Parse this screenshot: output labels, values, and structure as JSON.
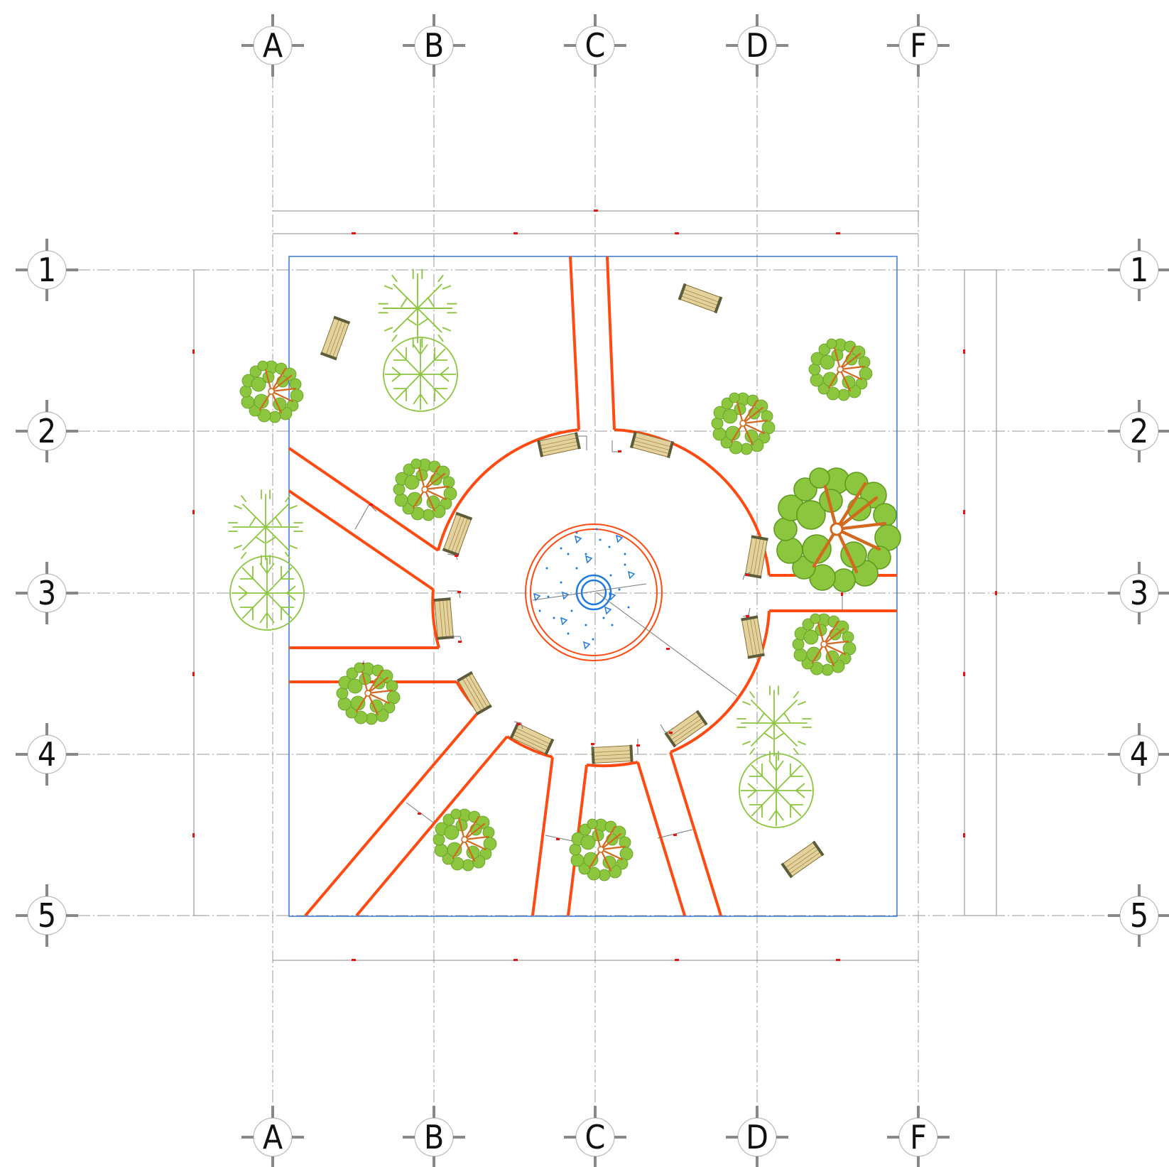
{
  "columns": [
    "A",
    "B",
    "C",
    "D",
    "F"
  ],
  "rows": [
    "1",
    "2",
    "3",
    "4",
    "5"
  ],
  "colors": {
    "path": "#ff4a12",
    "border": "#2e6fd1",
    "fountain_water": "#1f7ae0",
    "tree_leaf": "#8cc63f",
    "tree_trunk": "#d2691e",
    "bench": "#d8c48e",
    "grid": "#9a9a9a",
    "marker": "#ee1111"
  },
  "legend_icons": {
    "tree": "deciduous-tree-icon",
    "tree_outline": "outline-tree-icon",
    "bench": "park-bench-icon",
    "fountain": "fountain-icon"
  }
}
